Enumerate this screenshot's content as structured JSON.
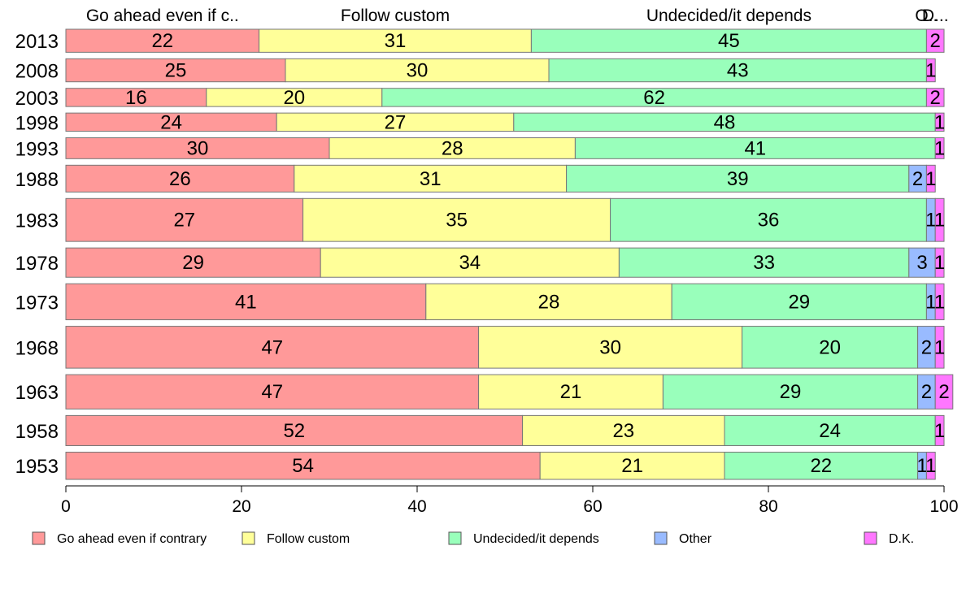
{
  "chart_data": {
    "type": "bar",
    "orientation": "horizontal",
    "stacked": true,
    "categories": [
      "2013",
      "2008",
      "2003",
      "1998",
      "1993",
      "1988",
      "1983",
      "1978",
      "1973",
      "1968",
      "1963",
      "1958",
      "1953"
    ],
    "series": [
      {
        "name": "Go ahead even if contrary",
        "short_label": "Go ahead even if c..",
        "color": "#ff9999",
        "values": [
          22,
          25,
          16,
          24,
          30,
          26,
          27,
          29,
          41,
          47,
          47,
          52,
          54
        ]
      },
      {
        "name": "Follow custom",
        "short_label": "Follow custom",
        "color": "#ffff99",
        "values": [
          31,
          30,
          20,
          27,
          28,
          31,
          35,
          34,
          28,
          30,
          21,
          23,
          21
        ]
      },
      {
        "name": "Undecided/it depends",
        "short_label": "Undecided/it depends",
        "color": "#99ffbb",
        "values": [
          45,
          43,
          62,
          48,
          41,
          39,
          36,
          33,
          29,
          20,
          29,
          24,
          22
        ]
      },
      {
        "name": "Other",
        "short_label": "O..",
        "color": "#99bbff",
        "values": [
          0,
          0,
          0,
          0,
          0,
          2,
          1,
          3,
          1,
          2,
          2,
          0,
          1
        ]
      },
      {
        "name": "D.K.",
        "short_label": "D...",
        "color": "#ff77ff",
        "values": [
          2,
          1,
          2,
          1,
          1,
          1,
          1,
          1,
          1,
          1,
          2,
          1,
          1
        ]
      }
    ],
    "row_weights": [
      1.1,
      1.1,
      0.87,
      0.87,
      1.0,
      1.28,
      2.05,
      1.4,
      1.72,
      2.0,
      1.64,
      1.44,
      1.3
    ],
    "xlim": [
      0,
      100
    ],
    "xticks": [
      0,
      20,
      40,
      60,
      80,
      100
    ],
    "legend_position": "bottom",
    "grid": false
  }
}
